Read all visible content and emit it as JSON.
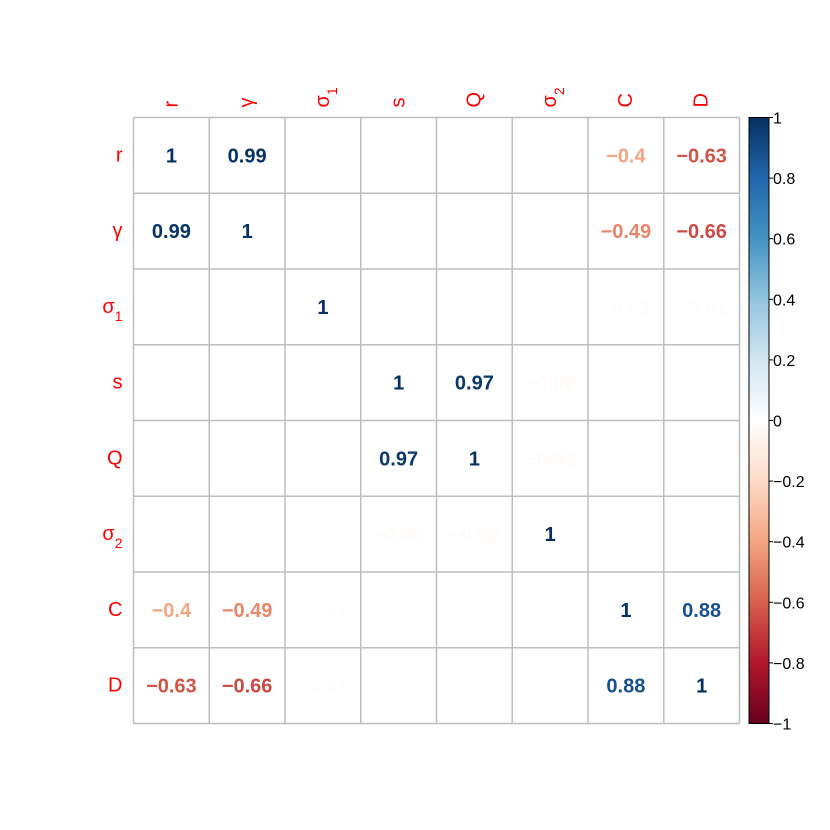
{
  "chart_data": {
    "type": "heatmap",
    "title": "",
    "row_labels": [
      {
        "base": "r",
        "sub": ""
      },
      {
        "base": "γ",
        "sub": ""
      },
      {
        "base": "σ",
        "sub": "1"
      },
      {
        "base": "s",
        "sub": ""
      },
      {
        "base": "Q",
        "sub": ""
      },
      {
        "base": "σ",
        "sub": "2"
      },
      {
        "base": "C",
        "sub": ""
      },
      {
        "base": "D",
        "sub": ""
      }
    ],
    "col_labels": [
      {
        "base": "r",
        "sub": ""
      },
      {
        "base": "γ",
        "sub": ""
      },
      {
        "base": "σ",
        "sub": "1"
      },
      {
        "base": "s",
        "sub": ""
      },
      {
        "base": "Q",
        "sub": ""
      },
      {
        "base": "σ",
        "sub": "2"
      },
      {
        "base": "C",
        "sub": ""
      },
      {
        "base": "D",
        "sub": ""
      }
    ],
    "matrix": [
      [
        1,
        0.99,
        0,
        0,
        0,
        0,
        -0.4,
        -0.63
      ],
      [
        0.99,
        1,
        0,
        0,
        0,
        0,
        -0.49,
        -0.66
      ],
      [
        0,
        0,
        1,
        0,
        0,
        0,
        -0.01,
        -0.01
      ],
      [
        0,
        0,
        0,
        1,
        0.97,
        -0.02,
        0,
        0
      ],
      [
        0,
        0,
        0,
        0.97,
        1,
        -0.02,
        0,
        0
      ],
      [
        0,
        0,
        0,
        -0.02,
        -0.02,
        1,
        0,
        0
      ],
      [
        -0.4,
        -0.49,
        -0.01,
        0,
        0,
        0,
        1,
        0.88
      ],
      [
        -0.63,
        -0.66,
        -0.01,
        0,
        0,
        0,
        0.88,
        1
      ]
    ],
    "cell_labels": [
      [
        "1",
        "0.99",
        "",
        "",
        "",
        "",
        "−0.4",
        "−0.63"
      ],
      [
        "0.99",
        "1",
        "",
        "",
        "",
        "",
        "−0.49",
        "−0.66"
      ],
      [
        "",
        "",
        "1",
        "",
        "",
        "",
        "−0.01",
        "−0.01"
      ],
      [
        "",
        "",
        "",
        "1",
        "0.97",
        "−0.02",
        "",
        ""
      ],
      [
        "",
        "",
        "",
        "0.97",
        "1",
        "−0.02",
        "",
        ""
      ],
      [
        "",
        "",
        "",
        "−0.02",
        "−0.02",
        "1",
        "",
        ""
      ],
      [
        "−0.4",
        "−0.49",
        "−0.01",
        "",
        "",
        "",
        "1",
        "0.88"
      ],
      [
        "−0.63",
        "−0.66",
        "−0.01",
        "",
        "",
        "",
        "0.88",
        "1"
      ]
    ],
    "colorbar": {
      "range": [
        -1,
        1
      ],
      "ticks": [
        1,
        0.8,
        0.6,
        0.4,
        0.2,
        0,
        -0.2,
        -0.4,
        -0.6,
        -0.8,
        -1
      ],
      "tick_labels": [
        "1",
        "0.8",
        "0.6",
        "0.4",
        "0.2",
        "0",
        "−0.2",
        "−0.4",
        "−0.6",
        "−0.8",
        "−1"
      ],
      "colors": [
        "#67001F",
        "#B2182B",
        "#D6604D",
        "#F4A582",
        "#FDDBC7",
        "#FFFFFF",
        "#D1E5F0",
        "#92C5DE",
        "#4393C3",
        "#2166AC",
        "#053061"
      ]
    },
    "label_color": "#FF0000",
    "grid_color": "#BEBEBE"
  }
}
